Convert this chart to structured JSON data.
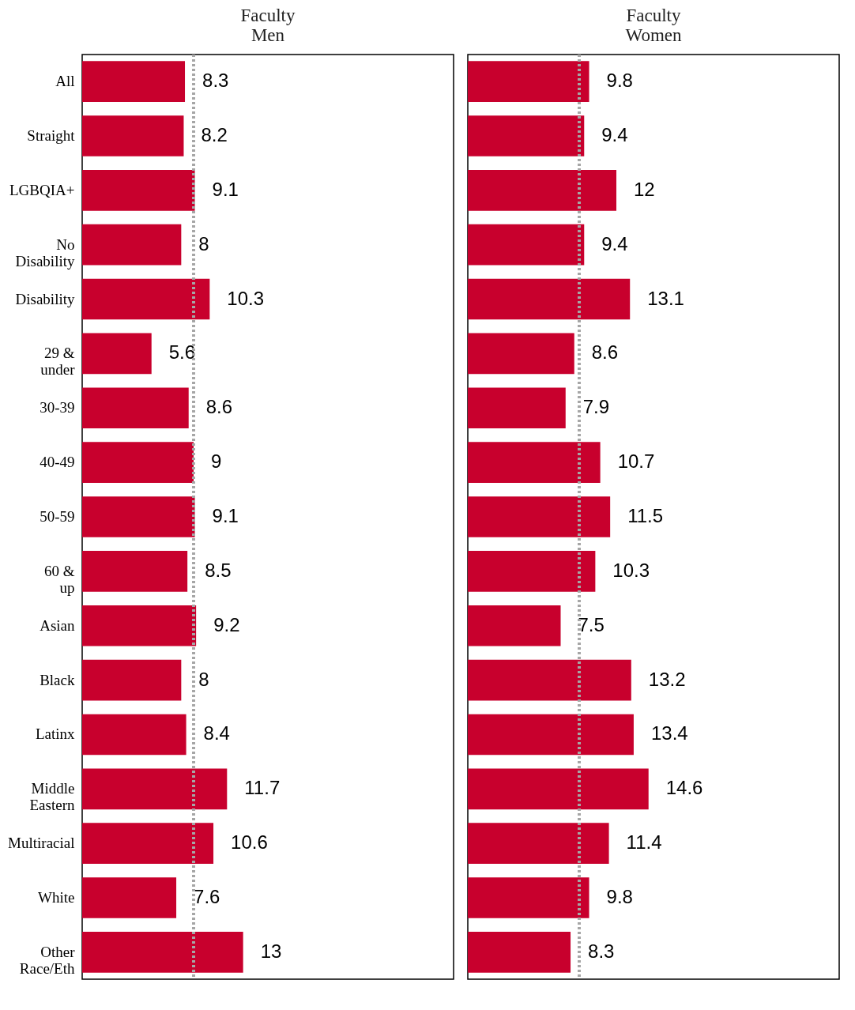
{
  "chart_data": [
    {
      "type": "bar",
      "orientation": "horizontal",
      "title": "Faculty\nMen",
      "categories": [
        "All",
        "Straight",
        "LGBQIA+",
        "No\nDisability",
        "Disability",
        "29 &\nunder",
        "30-39",
        "40-49",
        "50-59",
        "60 &\nup",
        "Asian",
        "Black",
        "Latinx",
        "Middle\nEastern",
        "Multiracial",
        "White",
        "Other\nRace/Eth"
      ],
      "values": [
        8.3,
        8.2,
        9.1,
        8,
        10.3,
        5.6,
        8.6,
        9,
        9.1,
        8.5,
        9.2,
        8,
        8.4,
        11.7,
        10.6,
        7.6,
        13
      ],
      "color": "#c8002d",
      "xlim": [
        0,
        30
      ],
      "data_labels": true,
      "tick_labels": "y",
      "ref_lines": [
        {
          "axis": "x",
          "value": 9,
          "color": "#a6a6a6",
          "line_style": "dotted"
        }
      ]
    },
    {
      "type": "bar",
      "orientation": "horizontal",
      "title": "Faculty\nWomen",
      "categories": [
        null,
        null,
        null,
        null,
        null,
        null,
        null,
        null,
        null,
        null,
        null,
        null,
        null,
        null,
        null,
        null,
        null
      ],
      "values": [
        9.8,
        9.4,
        12,
        9.4,
        13.1,
        8.6,
        7.9,
        10.7,
        11.5,
        10.3,
        7.5,
        13.2,
        13.4,
        14.6,
        11.4,
        9.8,
        8.3
      ],
      "color": "#c8002d",
      "xlim": [
        0,
        30
      ],
      "data_labels": true,
      "tick_labels": false,
      "ref_lines": [
        {
          "axis": "x",
          "value": 9,
          "color": "#a6a6a6",
          "line_style": "dotted"
        }
      ]
    }
  ]
}
